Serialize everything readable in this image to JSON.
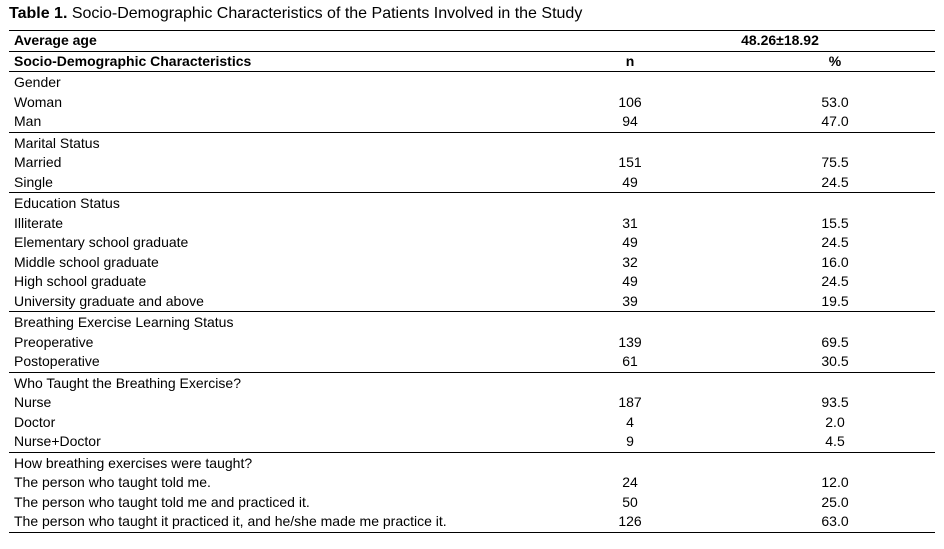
{
  "caption": {
    "label": "Table 1.",
    "text": " Socio-Demographic Characteristics of the Patients Involved in the Study"
  },
  "average_age": {
    "label": "Average age",
    "value": "48.26±18.92"
  },
  "header": {
    "characteristics": "Socio-Demographic Characteristics",
    "n": "n",
    "percent": "%"
  },
  "groups": [
    {
      "title": "Gender",
      "rows": [
        {
          "label": "Woman",
          "n": "106",
          "pct": "53.0"
        },
        {
          "label": "Man",
          "n": "94",
          "pct": "47.0"
        }
      ]
    },
    {
      "title": "Marital Status",
      "rows": [
        {
          "label": "Married",
          "n": "151",
          "pct": "75.5"
        },
        {
          "label": "Single",
          "n": "49",
          "pct": "24.5"
        }
      ]
    },
    {
      "title": "Education Status",
      "rows": [
        {
          "label": "Illiterate",
          "n": "31",
          "pct": "15.5"
        },
        {
          "label": "Elementary school graduate",
          "n": "49",
          "pct": "24.5"
        },
        {
          "label": "Middle school graduate",
          "n": "32",
          "pct": "16.0"
        },
        {
          "label": "High school graduate",
          "n": "49",
          "pct": "24.5"
        },
        {
          "label": "University  graduate and above",
          "n": "39",
          "pct": "19.5"
        }
      ]
    },
    {
      "title": "Breathing Exercise Learning Status",
      "rows": [
        {
          "label": "Preoperative",
          "n": "139",
          "pct": "69.5"
        },
        {
          "label": "Postoperative",
          "n": "61",
          "pct": "30.5"
        }
      ]
    },
    {
      "title": "Who Taught the Breathing Exercise?",
      "rows": [
        {
          "label": "Nurse",
          "n": "187",
          "pct": "93.5"
        },
        {
          "label": "Doctor",
          "n": "4",
          "pct": "2.0"
        },
        {
          "label": "Nurse+Doctor",
          "n": "9",
          "pct": "4.5"
        }
      ]
    },
    {
      "title": "How breathing exercises were taught?",
      "rows": [
        {
          "label": "The person who taught told me.",
          "n": "24",
          "pct": "12.0"
        },
        {
          "label": "The person who taught told me and practiced it.",
          "n": "50",
          "pct": "25.0"
        },
        {
          "label": "The person who taught it practiced it, and he/she made me practice it.",
          "n": "126",
          "pct": "63.0"
        }
      ]
    }
  ]
}
